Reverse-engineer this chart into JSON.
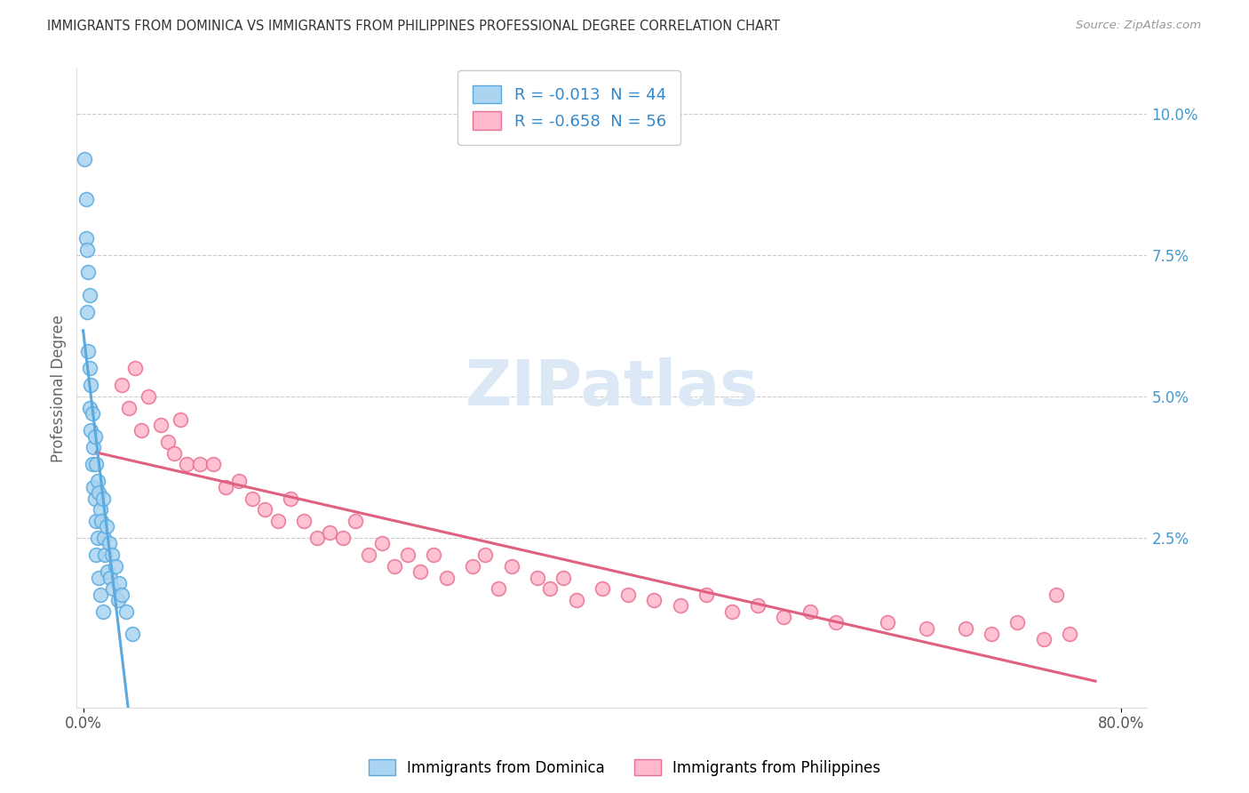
{
  "title": "IMMIGRANTS FROM DOMINICA VS IMMIGRANTS FROM PHILIPPINES PROFESSIONAL DEGREE CORRELATION CHART",
  "source": "Source: ZipAtlas.com",
  "ylabel": "Professional Degree",
  "legend_label1": "R = -0.013  N = 44",
  "legend_label2": "R = -0.658  N = 56",
  "legend_entry1": "Immigrants from Dominica",
  "legend_entry2": "Immigrants from Philippines",
  "color_blue_fill": "#aad4f0",
  "color_blue_edge": "#5aaae0",
  "color_pink_fill": "#ffb8cc",
  "color_pink_edge": "#e87090",
  "color_line_blue": "#5aaae0",
  "color_line_pink": "#e06080",
  "watermark_color": "#dce8f5",
  "dominica_x": [
    0.001,
    0.002,
    0.002,
    0.003,
    0.003,
    0.004,
    0.004,
    0.005,
    0.005,
    0.005,
    0.006,
    0.006,
    0.007,
    0.007,
    0.008,
    0.008,
    0.009,
    0.009,
    0.01,
    0.01,
    0.01,
    0.011,
    0.011,
    0.012,
    0.012,
    0.013,
    0.013,
    0.014,
    0.015,
    0.015,
    0.016,
    0.017,
    0.018,
    0.019,
    0.02,
    0.021,
    0.022,
    0.023,
    0.025,
    0.027,
    0.028,
    0.03,
    0.033,
    0.038
  ],
  "dominica_y": [
    0.092,
    0.085,
    0.078,
    0.076,
    0.065,
    0.072,
    0.058,
    0.068,
    0.055,
    0.048,
    0.052,
    0.044,
    0.047,
    0.038,
    0.041,
    0.034,
    0.043,
    0.032,
    0.038,
    0.028,
    0.022,
    0.035,
    0.025,
    0.033,
    0.018,
    0.03,
    0.015,
    0.028,
    0.032,
    0.012,
    0.025,
    0.022,
    0.027,
    0.019,
    0.024,
    0.018,
    0.022,
    0.016,
    0.02,
    0.014,
    0.017,
    0.015,
    0.012,
    0.008
  ],
  "philippines_x": [
    0.03,
    0.035,
    0.04,
    0.045,
    0.05,
    0.06,
    0.065,
    0.07,
    0.075,
    0.08,
    0.09,
    0.1,
    0.11,
    0.12,
    0.13,
    0.14,
    0.15,
    0.16,
    0.17,
    0.18,
    0.19,
    0.2,
    0.21,
    0.22,
    0.23,
    0.24,
    0.25,
    0.26,
    0.27,
    0.28,
    0.3,
    0.31,
    0.32,
    0.33,
    0.35,
    0.36,
    0.37,
    0.38,
    0.4,
    0.42,
    0.44,
    0.46,
    0.48,
    0.5,
    0.52,
    0.54,
    0.56,
    0.58,
    0.62,
    0.65,
    0.68,
    0.7,
    0.72,
    0.74,
    0.76,
    0.75
  ],
  "philippines_y": [
    0.052,
    0.048,
    0.055,
    0.044,
    0.05,
    0.045,
    0.042,
    0.04,
    0.046,
    0.038,
    0.038,
    0.038,
    0.034,
    0.035,
    0.032,
    0.03,
    0.028,
    0.032,
    0.028,
    0.025,
    0.026,
    0.025,
    0.028,
    0.022,
    0.024,
    0.02,
    0.022,
    0.019,
    0.022,
    0.018,
    0.02,
    0.022,
    0.016,
    0.02,
    0.018,
    0.016,
    0.018,
    0.014,
    0.016,
    0.015,
    0.014,
    0.013,
    0.015,
    0.012,
    0.013,
    0.011,
    0.012,
    0.01,
    0.01,
    0.009,
    0.009,
    0.008,
    0.01,
    0.007,
    0.008,
    0.015
  ],
  "xlim": [
    -0.005,
    0.82
  ],
  "ylim": [
    -0.005,
    0.108
  ],
  "yticks": [
    0.0,
    0.025,
    0.05,
    0.075,
    0.1
  ],
  "ytick_labels": [
    "",
    "2.5%",
    "5.0%",
    "7.5%",
    "10.0%"
  ],
  "xticks": [
    0.0,
    0.8
  ],
  "xtick_labels": [
    "0.0%",
    "80.0%"
  ]
}
